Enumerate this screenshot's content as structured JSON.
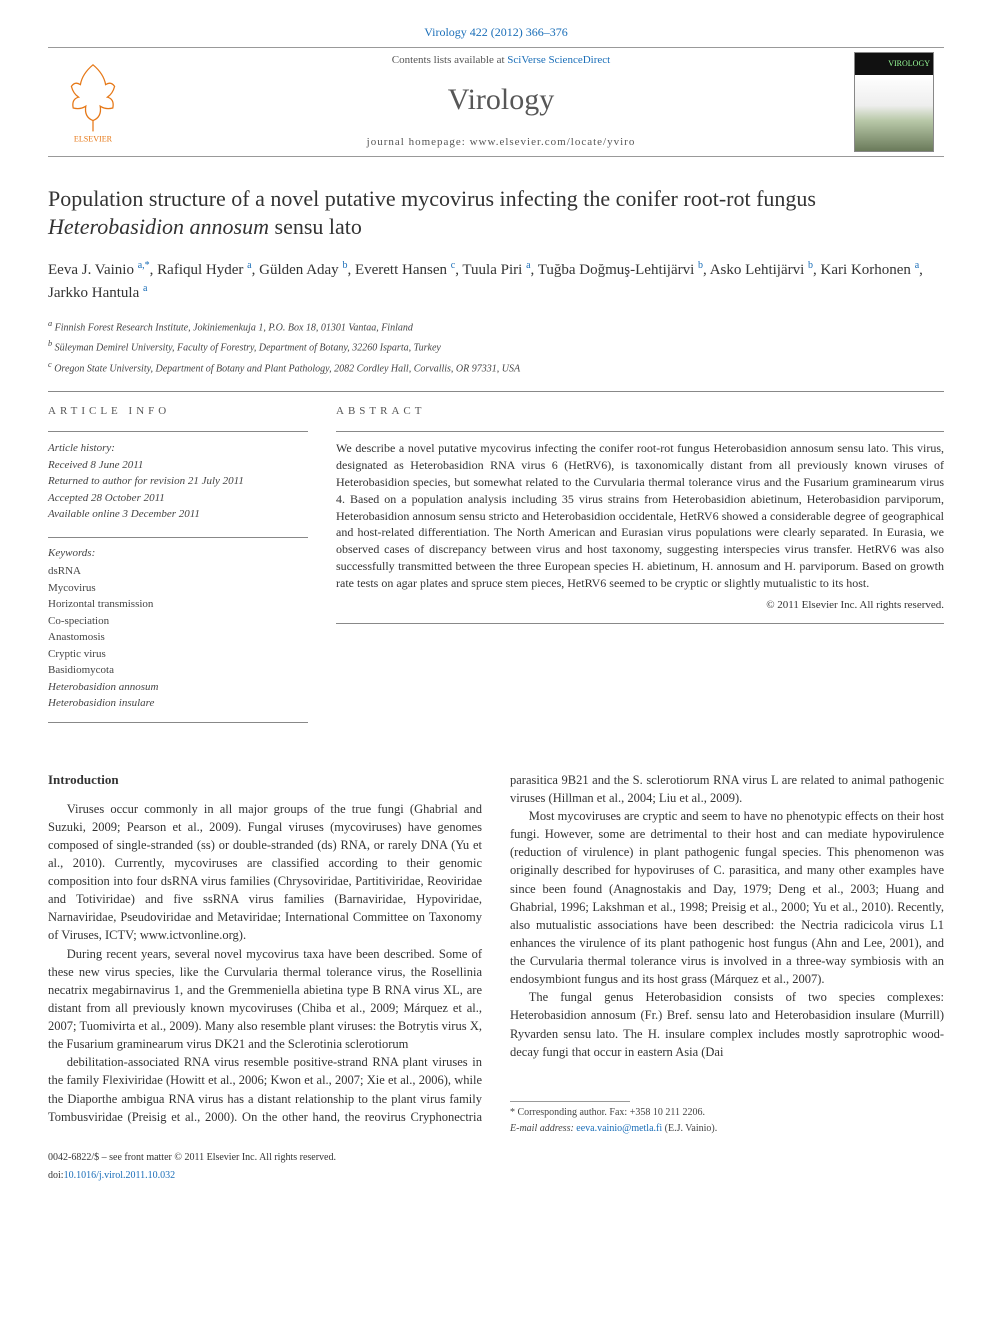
{
  "header": {
    "journal_link": "Virology 422 (2012) 366–376",
    "contents_list_pre": "Contents lists available at ",
    "contents_list_link": "SciVerse ScienceDirect",
    "journal_name": "Virology",
    "homepage_pre": "journal homepage: ",
    "homepage_url": "www.elsevier.com/locate/yviro",
    "cover_text": "VIROLOGY"
  },
  "title_part1": "Population structure of a novel putative mycovirus infecting the conifer root-rot fungus ",
  "title_italic": "Heterobasidion annosum",
  "title_part2": " sensu lato",
  "authors": [
    {
      "name": "Eeva J. Vainio",
      "aff": "a,",
      "star": "*"
    },
    {
      "name": "Rafiqul Hyder",
      "aff": "a"
    },
    {
      "name": "Gülden Aday",
      "aff": "b"
    },
    {
      "name": "Everett Hansen",
      "aff": "c"
    },
    {
      "name": "Tuula Piri",
      "aff": "a"
    },
    {
      "name": "Tuğba Doğmuş-Lehtijärvi",
      "aff": "b"
    },
    {
      "name": "Asko Lehtijärvi",
      "aff": "b"
    },
    {
      "name": "Kari Korhonen",
      "aff": "a"
    },
    {
      "name": "Jarkko Hantula",
      "aff": "a"
    }
  ],
  "affiliations": [
    {
      "sup": "a",
      "text": "Finnish Forest Research Institute, Jokiniemenkuja 1, P.O. Box 18, 01301 Vantaa, Finland"
    },
    {
      "sup": "b",
      "text": "Süleyman Demirel University, Faculty of Forestry, Department of Botany, 32260 Isparta, Turkey"
    },
    {
      "sup": "c",
      "text": "Oregon State University, Department of Botany and Plant Pathology, 2082 Cordley Hall, Corvallis, OR 97331, USA"
    }
  ],
  "article_info_label": "ARTICLE INFO",
  "abstract_label": "ABSTRACT",
  "history": {
    "label": "Article history:",
    "received": "Received 8 June 2011",
    "returned": "Returned to author for revision 21 July 2011",
    "accepted": "Accepted 28 October 2011",
    "online": "Available online 3 December 2011"
  },
  "keywords_label": "Keywords:",
  "keywords": [
    "dsRNA",
    "Mycovirus",
    "Horizontal transmission",
    "Co-speciation",
    "Anastomosis",
    "Cryptic virus",
    "Basidiomycota",
    "Heterobasidion annosum",
    "Heterobasidion insulare"
  ],
  "keyword_italic_indices": [
    7,
    8
  ],
  "abstract_text": "We describe a novel putative mycovirus infecting the conifer root-rot fungus Heterobasidion annosum sensu lato. This virus, designated as Heterobasidion RNA virus 6 (HetRV6), is taxonomically distant from all previously known viruses of Heterobasidion species, but somewhat related to the Curvularia thermal tolerance virus and the Fusarium graminearum virus 4. Based on a population analysis including 35 virus strains from Heterobasidion abietinum, Heterobasidion parviporum, Heterobasidion annosum sensu stricto and Heterobasidion occidentale, HetRV6 showed a considerable degree of geographical and host-related differentiation. The North American and Eurasian virus populations were clearly separated. In Eurasia, we observed cases of discrepancy between virus and host taxonomy, suggesting interspecies virus transfer. HetRV6 was also successfully transmitted between the three European species H. abietinum, H. annosum and H. parviporum. Based on growth rate tests on agar plates and spruce stem pieces, HetRV6 seemed to be cryptic or slightly mutualistic to its host.",
  "copyright": "© 2011 Elsevier Inc. All rights reserved.",
  "intro_heading": "Introduction",
  "intro_paragraphs": [
    "Viruses occur commonly in all major groups of the true fungi (Ghabrial and Suzuki, 2009; Pearson et al., 2009). Fungal viruses (mycoviruses) have genomes composed of single-stranded (ss) or double-stranded (ds) RNA, or rarely DNA (Yu et al., 2010). Currently, mycoviruses are classified according to their genomic composition into four dsRNA virus families (Chrysoviridae, Partitiviridae, Reoviridae and Totiviridae) and five ssRNA virus families (Barnaviridae, Hypoviridae, Narnaviridae, Pseudoviridae and Metaviridae; International Committee on Taxonomy of Viruses, ICTV; www.ictvonline.org).",
    "During recent years, several novel mycovirus taxa have been described. Some of these new virus species, like the Curvularia thermal tolerance virus, the Rosellinia necatrix megabirnavirus 1, and the Gremmeniella abietina type B RNA virus XL, are distant from all previously known mycoviruses (Chiba et al., 2009; Márquez et al., 2007; Tuomivirta et al., 2009). Many also resemble plant viruses: the Botrytis virus X, the Fusarium graminearum virus DK21 and the Sclerotinia sclerotiorum",
    "debilitation-associated RNA virus resemble positive-strand RNA plant viruses in the family Flexiviridae (Howitt et al., 2006; Kwon et al., 2007; Xie et al., 2006), while the Diaporthe ambigua RNA virus has a distant relationship to the plant virus family Tombusviridae (Preisig et al., 2000). On the other hand, the reovirus Cryphonectria parasitica 9B21 and the S. sclerotiorum RNA virus L are related to animal pathogenic viruses (Hillman et al., 2004; Liu et al., 2009).",
    "Most mycoviruses are cryptic and seem to have no phenotypic effects on their host fungi. However, some are detrimental to their host and can mediate hypovirulence (reduction of virulence) in plant pathogenic fungal species. This phenomenon was originally described for hypoviruses of C. parasitica, and many other examples have since been found (Anagnostakis and Day, 1979; Deng et al., 2003; Huang and Ghabrial, 1996; Lakshman et al., 1998; Preisig et al., 2000; Yu et al., 2010). Recently, also mutualistic associations have been described: the Nectria radicicola virus L1 enhances the virulence of its plant pathogenic host fungus (Ahn and Lee, 2001), and the Curvularia thermal tolerance virus is involved in a three-way symbiosis with an endosymbiont fungus and its host grass (Márquez et al., 2007).",
    "The fungal genus Heterobasidion consists of two species complexes: Heterobasidion annosum (Fr.) Bref. sensu lato and Heterobasidion insulare (Murrill) Ryvarden sensu lato. The H. insulare complex includes mostly saprotrophic wood-decay fungi that occur in eastern Asia (Dai"
  ],
  "footer": {
    "corresponding": "* Corresponding author. Fax: +358 10 211 2206.",
    "email_label": "E-mail address:",
    "email": "eeva.vainio@metla.fi",
    "email_suffix": " (E.J. Vainio).",
    "issn": "0042-6822/$ – see front matter © 2011 Elsevier Inc. All rights reserved.",
    "doi_label": "doi:",
    "doi": "10.1016/j.virol.2011.10.032"
  }
}
